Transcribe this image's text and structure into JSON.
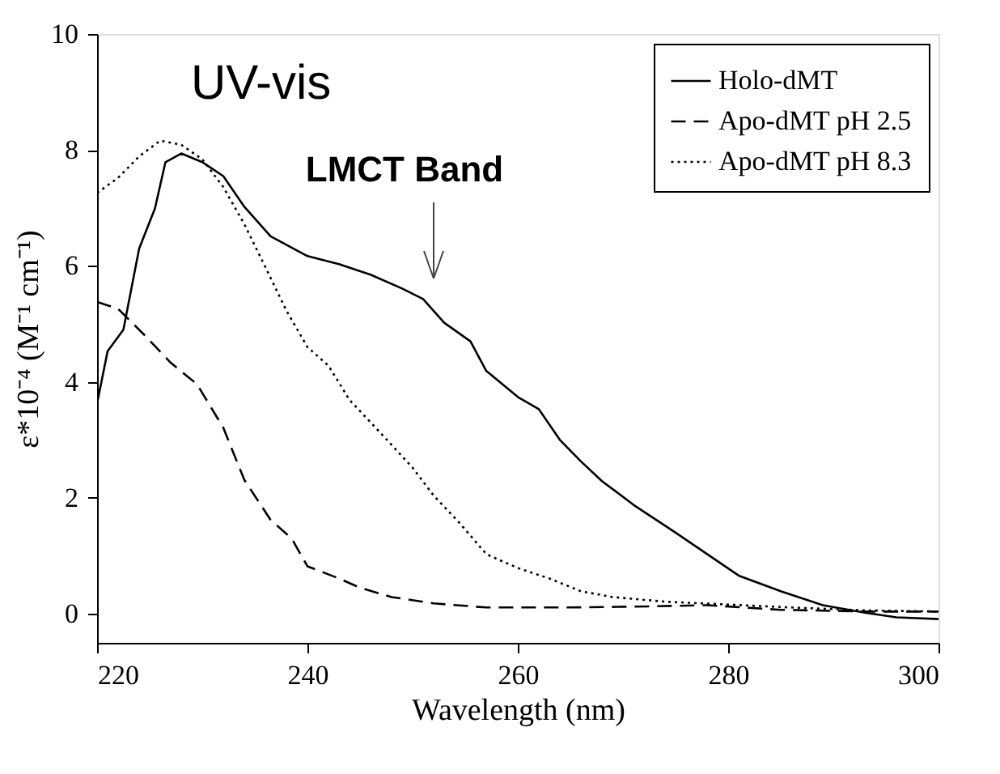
{
  "chart_data": {
    "type": "line",
    "xlabel": "Wavelength (nm)",
    "ylabel": "ε*10⁻⁴ (M⁻¹ cm⁻¹)",
    "xlim": [
      220,
      300
    ],
    "xticks": [
      220,
      240,
      260,
      280,
      300
    ],
    "ylim": [
      -0.5,
      10
    ],
    "yticks": [
      0,
      2,
      4,
      6,
      8,
      10
    ],
    "grid": false,
    "legend": "top right",
    "marker": "none",
    "annotations": [
      "UV-vis",
      "LMCT Band"
    ],
    "series": [
      {
        "name": "Holo-dMT",
        "color": "#000000",
        "line_style": "solid",
        "x": [
          220,
          221,
          222.5,
          224,
          225.5,
          226.5,
          228,
          230,
          232,
          234,
          236.5,
          240,
          243,
          246,
          249,
          251,
          253,
          255.5,
          257,
          260,
          262,
          264,
          266,
          268,
          271,
          275,
          278,
          281,
          285,
          289,
          293,
          296,
          300
        ],
        "values": [
          3.63,
          4.53,
          4.9,
          6.3,
          6.99,
          7.79,
          7.94,
          7.79,
          7.55,
          7.02,
          6.51,
          6.17,
          6.03,
          5.85,
          5.61,
          5.43,
          5.02,
          4.7,
          4.19,
          3.74,
          3.53,
          3.0,
          2.63,
          2.29,
          1.88,
          1.4,
          1.03,
          0.66,
          0.39,
          0.15,
          0.02,
          -0.06,
          -0.09
        ]
      },
      {
        "name": "Apo-dMT pH 2.5",
        "color": "#000000",
        "line_style": "dashed",
        "x": [
          220,
          222,
          224.5,
          227,
          229.5,
          232,
          234,
          236.5,
          238.5,
          240,
          243,
          245,
          248,
          252,
          257,
          265,
          273,
          278,
          285,
          293,
          300
        ],
        "values": [
          5.38,
          5.26,
          4.81,
          4.33,
          3.96,
          3.21,
          2.31,
          1.62,
          1.3,
          0.82,
          0.61,
          0.45,
          0.29,
          0.18,
          0.11,
          0.11,
          0.13,
          0.15,
          0.07,
          0.04,
          0.04
        ]
      },
      {
        "name": "Apo-dMT pH 8.3",
        "color": "#000000",
        "line_style": "dotted",
        "x": [
          220,
          222,
          224,
          226,
          228,
          230,
          232,
          234,
          236,
          238,
          240,
          242,
          244,
          247,
          250,
          252,
          254.5,
          257,
          260,
          263,
          266,
          269,
          274,
          280,
          286,
          293,
          300
        ],
        "values": [
          7.26,
          7.52,
          7.89,
          8.16,
          8.09,
          7.84,
          7.36,
          6.72,
          5.98,
          5.23,
          4.6,
          4.28,
          3.69,
          3.11,
          2.52,
          2.04,
          1.56,
          1.03,
          0.79,
          0.61,
          0.39,
          0.29,
          0.21,
          0.16,
          0.11,
          0.06,
          0.04
        ]
      }
    ]
  }
}
